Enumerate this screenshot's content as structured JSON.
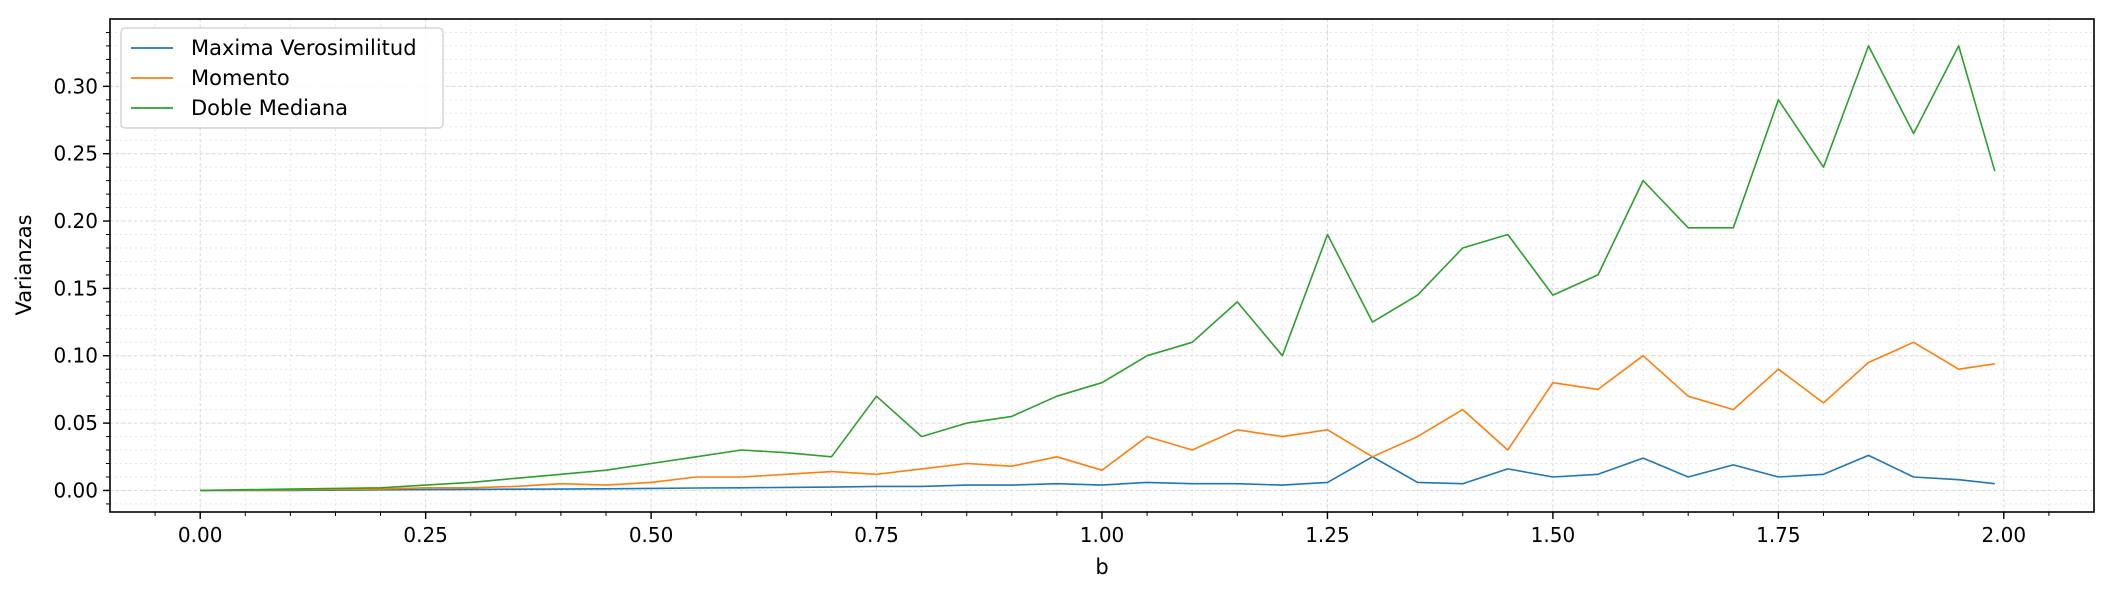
{
  "chart_data": {
    "type": "line",
    "title": "",
    "xlabel": "b",
    "ylabel": "Varianzas",
    "xlim": [
      -0.1,
      2.1
    ],
    "ylim": [
      -0.016,
      0.35
    ],
    "xticks": [
      0.0,
      0.25,
      0.5,
      0.75,
      1.0,
      1.25,
      1.5,
      1.75,
      2.0
    ],
    "xtick_labels": [
      "0.00",
      "0.25",
      "0.50",
      "0.75",
      "1.00",
      "1.25",
      "1.50",
      "1.75",
      "2.00"
    ],
    "yticks": [
      0.0,
      0.05,
      0.1,
      0.15,
      0.2,
      0.25,
      0.3
    ],
    "ytick_labels": [
      "0.00",
      "0.05",
      "0.10",
      "0.15",
      "0.20",
      "0.25",
      "0.30"
    ],
    "grid": true,
    "legend_position": "top-left",
    "x": [
      0.0,
      0.1,
      0.2,
      0.25,
      0.3,
      0.35,
      0.4,
      0.45,
      0.5,
      0.55,
      0.6,
      0.65,
      0.7,
      0.75,
      0.8,
      0.85,
      0.9,
      0.95,
      1.0,
      1.05,
      1.1,
      1.15,
      1.2,
      1.25,
      1.3,
      1.35,
      1.4,
      1.45,
      1.5,
      1.55,
      1.6,
      1.65,
      1.7,
      1.75,
      1.8,
      1.85,
      1.9,
      1.95,
      1.99
    ],
    "series": [
      {
        "name": "Maxima Verosimilitud",
        "color": "#1f77b4",
        "values": [
          0.0,
          0.0,
          0.0005,
          0.0006,
          0.0008,
          0.0009,
          0.001,
          0.0012,
          0.0015,
          0.0018,
          0.002,
          0.0023,
          0.0025,
          0.003,
          0.003,
          0.004,
          0.004,
          0.005,
          0.004,
          0.006,
          0.005,
          0.005,
          0.004,
          0.006,
          0.025,
          0.006,
          0.005,
          0.016,
          0.01,
          0.012,
          0.024,
          0.01,
          0.019,
          0.01,
          0.012,
          0.026,
          0.01,
          0.008,
          0.005
        ]
      },
      {
        "name": "Momento",
        "color": "#ff7f0e",
        "values": [
          0.0,
          0.0005,
          0.001,
          0.002,
          0.002,
          0.003,
          0.005,
          0.004,
          0.006,
          0.01,
          0.01,
          0.012,
          0.014,
          0.012,
          0.016,
          0.02,
          0.018,
          0.025,
          0.015,
          0.04,
          0.03,
          0.045,
          0.04,
          0.045,
          0.025,
          0.04,
          0.06,
          0.03,
          0.08,
          0.075,
          0.1,
          0.07,
          0.06,
          0.09,
          0.065,
          0.095,
          0.11,
          0.09,
          0.094
        ]
      },
      {
        "name": "Doble Mediana",
        "color": "#2ca02c",
        "values": [
          0.0,
          0.001,
          0.002,
          0.004,
          0.006,
          0.009,
          0.012,
          0.015,
          0.02,
          0.025,
          0.03,
          0.028,
          0.025,
          0.07,
          0.04,
          0.05,
          0.055,
          0.07,
          0.08,
          0.1,
          0.11,
          0.14,
          0.1,
          0.19,
          0.125,
          0.145,
          0.18,
          0.19,
          0.145,
          0.16,
          0.23,
          0.195,
          0.195,
          0.29,
          0.24,
          0.33,
          0.265,
          0.33,
          0.237
        ]
      }
    ]
  }
}
